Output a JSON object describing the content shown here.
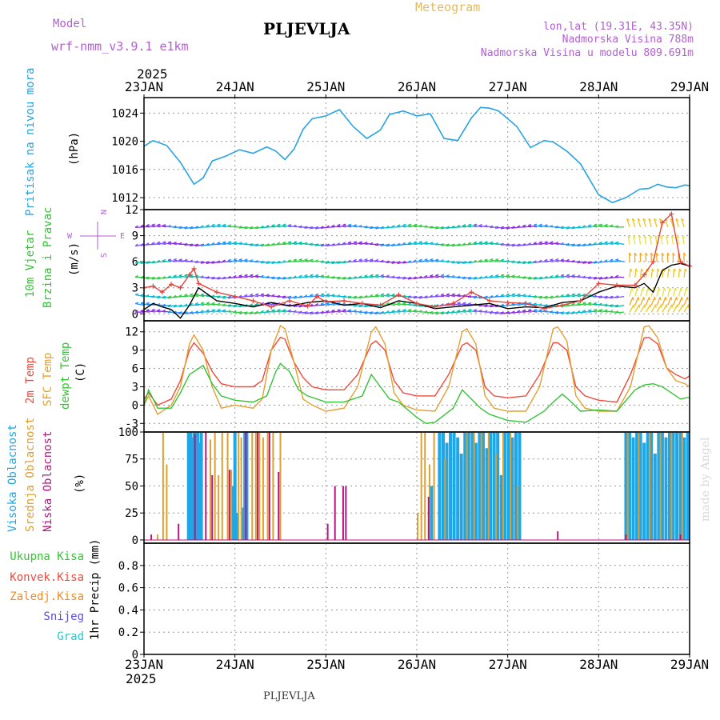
{
  "header": {
    "model_label": "Model",
    "model_name": "wrf-nmm_v3.9.1  e1km",
    "station": "PLJEVLJA",
    "title": "Meteogram",
    "coords": "lon,lat (19.31E, 43.35N)",
    "elevation": "Nadmorska Visina 788m",
    "model_elevation": "Nadmorska Visina u modelu 809.691m"
  },
  "footer": {
    "station": "PLJEVLJA",
    "credit": "made by Angel"
  },
  "time_axis": {
    "year": "2025",
    "labels": [
      "23JAN",
      "24JAN",
      "25JAN",
      "26JAN",
      "27JAN",
      "28JAN",
      "29JAN"
    ]
  },
  "colors": {
    "pressure": "#29a3e0",
    "temp2m": "#ef4a3c",
    "sfctemp": "#e3a033",
    "dewpt": "#35c335",
    "high": "#1fa6e6",
    "mid": "#dca032",
    "low": "#b5177d",
    "gust": "#e4433a",
    "wind": "#000000"
  },
  "chart_data": [
    {
      "type": "line",
      "panel": "pressure",
      "ylabel": [
        "Pritisak na nivou mora",
        "(hPa)"
      ],
      "ylim": [
        1010.3,
        1026.2
      ],
      "yticks": [
        "1012",
        "1016",
        "1020",
        "1024"
      ],
      "grid": true,
      "series": [
        {
          "key": "pressure",
          "x": [
            0,
            0.1,
            0.25,
            0.4,
            0.55,
            0.65,
            0.75,
            0.9,
            1.05,
            1.2,
            1.35,
            1.45,
            1.55,
            1.65,
            1.75,
            1.85,
            2.0,
            2.15,
            2.3,
            2.45,
            2.6,
            2.7,
            2.85,
            3.0,
            3.15,
            3.3,
            3.45,
            3.6,
            3.7,
            3.8,
            3.9,
            4.1,
            4.25,
            4.4,
            4.5,
            4.65,
            4.8,
            5.0,
            5.15,
            5.3,
            5.45,
            5.55,
            5.65,
            5.75,
            5.85,
            5.95,
            6.0
          ],
          "values": [
            1019.3,
            1020.1,
            1019.4,
            1017.0,
            1013.9,
            1014.8,
            1017.2,
            1017.9,
            1018.8,
            1018.3,
            1019.2,
            1018.6,
            1017.4,
            1018.9,
            1021.7,
            1023.2,
            1023.6,
            1024.5,
            1022.1,
            1020.4,
            1021.6,
            1023.8,
            1024.3,
            1023.6,
            1023.9,
            1020.4,
            1020.1,
            1023.3,
            1024.8,
            1024.7,
            1024.3,
            1022.1,
            1019.1,
            1020.1,
            1019.9,
            1018.6,
            1016.8,
            1012.4,
            1011.3,
            1012.0,
            1013.2,
            1013.3,
            1013.9,
            1013.5,
            1013.4,
            1013.8,
            1013.7
          ]
        }
      ]
    },
    {
      "type": "line",
      "panel": "wind",
      "ylabel": [
        "10m Vjetar",
        "Brzina i Pravac",
        "(m/s)"
      ],
      "direction_key": {
        "w": "W",
        "e": "E",
        "n": "N",
        "s": "S"
      },
      "ylim": [
        -0.8,
        12
      ],
      "yticks": [
        "0",
        "3",
        "6",
        "9",
        "12"
      ],
      "grid": true,
      "arrow_rows": [
        0.2,
        1.0,
        2.0,
        4.2,
        6.0,
        8.0,
        10.0
      ],
      "series": [
        {
          "key": "wind",
          "x": [
            0,
            0.1,
            0.2,
            0.3,
            0.4,
            0.5,
            0.6,
            0.8,
            1.0,
            1.2,
            1.4,
            1.6,
            1.8,
            2.0,
            2.2,
            2.4,
            2.6,
            2.8,
            3.0,
            3.2,
            3.4,
            3.6,
            3.8,
            4.0,
            4.2,
            4.4,
            4.6,
            4.8,
            5.0,
            5.2,
            5.4,
            5.5,
            5.6,
            5.7,
            5.8,
            5.9,
            6.0
          ],
          "values": [
            0.5,
            1.2,
            0.8,
            0.5,
            -0.5,
            1.0,
            3.0,
            1.5,
            1.2,
            0.8,
            1.3,
            0.9,
            1.3,
            1.5,
            1.0,
            1.2,
            0.7,
            1.5,
            1.2,
            0.6,
            0.8,
            1.0,
            1.2,
            0.6,
            0.8,
            0.7,
            1.3,
            1.5,
            2.5,
            3.2,
            3.0,
            3.5,
            2.5,
            5.0,
            5.6,
            5.8,
            5.5
          ]
        },
        {
          "key": "gust",
          "x": [
            0,
            0.1,
            0.2,
            0.3,
            0.4,
            0.5,
            0.55,
            0.6,
            0.8,
            1.0,
            1.2,
            1.4,
            1.6,
            1.8,
            1.9,
            2.0,
            2.2,
            2.4,
            2.6,
            2.8,
            3.0,
            3.2,
            3.4,
            3.6,
            3.8,
            4.0,
            4.2,
            4.4,
            4.6,
            4.8,
            5.0,
            5.2,
            5.4,
            5.5,
            5.6,
            5.7,
            5.8,
            5.9,
            6.0
          ],
          "values": [
            3.0,
            3.2,
            2.5,
            3.4,
            3.0,
            4.5,
            5.2,
            3.5,
            2.5,
            2.0,
            1.5,
            0.8,
            1.5,
            0.9,
            2.0,
            1.4,
            1.5,
            1.2,
            1.0,
            2.2,
            1.2,
            0.8,
            1.2,
            2.5,
            1.5,
            1.3,
            1.2,
            0.6,
            1.0,
            1.5,
            3.5,
            3.3,
            3.3,
            4.5,
            6.0,
            10.5,
            11.5,
            6.0,
            5.5
          ]
        }
      ]
    },
    {
      "type": "line",
      "panel": "temperature",
      "ylabel": [
        "2m Temp",
        "SFC Temp",
        "dewpt Temp",
        "(C)"
      ],
      "ylim": [
        -4.4,
        13.8
      ],
      "yticks": [
        "-3",
        "0",
        "3",
        "6",
        "9",
        "12"
      ],
      "grid": true,
      "series": [
        {
          "key": "temp2m",
          "x": [
            0,
            0.05,
            0.15,
            0.3,
            0.4,
            0.5,
            0.55,
            0.65,
            0.75,
            0.85,
            1.0,
            1.2,
            1.3,
            1.4,
            1.5,
            1.55,
            1.65,
            1.75,
            1.85,
            2.0,
            2.2,
            2.35,
            2.5,
            2.55,
            2.65,
            2.75,
            2.85,
            3.0,
            3.2,
            3.35,
            3.5,
            3.55,
            3.65,
            3.75,
            3.85,
            4.0,
            4.2,
            4.35,
            4.5,
            4.55,
            4.65,
            4.75,
            4.85,
            5.0,
            5.2,
            5.35,
            5.5,
            5.55,
            5.65,
            5.75,
            5.85,
            5.95,
            6.0
          ],
          "values": [
            1.0,
            2.0,
            0.0,
            1.0,
            4.0,
            9.0,
            10.2,
            8.5,
            5.5,
            3.5,
            3.0,
            3.0,
            4.0,
            9.0,
            11.1,
            10.8,
            7.0,
            4.5,
            3.0,
            2.5,
            2.5,
            5.0,
            10.0,
            10.5,
            9.0,
            4.0,
            2.0,
            1.5,
            1.5,
            5.0,
            9.8,
            10.2,
            9.0,
            3.0,
            1.5,
            1.2,
            1.5,
            5.0,
            10.2,
            10.2,
            9.0,
            3.0,
            1.5,
            0.8,
            0.5,
            5.0,
            11.0,
            11.1,
            10.0,
            6.0,
            5.0,
            4.3,
            4.8
          ]
        },
        {
          "key": "sfctemp",
          "x": [
            0,
            0.05,
            0.15,
            0.3,
            0.4,
            0.5,
            0.55,
            0.65,
            0.75,
            0.85,
            1.0,
            1.2,
            1.3,
            1.4,
            1.5,
            1.55,
            1.65,
            1.75,
            1.85,
            2.0,
            2.2,
            2.35,
            2.5,
            2.55,
            2.65,
            2.75,
            2.85,
            3.0,
            3.2,
            3.35,
            3.5,
            3.55,
            3.65,
            3.75,
            3.85,
            4.0,
            4.2,
            4.35,
            4.5,
            4.55,
            4.65,
            4.75,
            4.85,
            5.0,
            5.2,
            5.35,
            5.5,
            5.55,
            5.65,
            5.75,
            5.85,
            5.95,
            6.0
          ],
          "values": [
            0.0,
            1.5,
            -1.5,
            0.0,
            3.0,
            10.0,
            11.5,
            9.0,
            3.0,
            -0.5,
            0.0,
            -0.5,
            1.0,
            9.0,
            13.0,
            12.5,
            7.0,
            1.0,
            0.0,
            -1.0,
            -0.5,
            3.0,
            12.0,
            12.8,
            10.0,
            2.0,
            0.0,
            -0.8,
            -1.0,
            3.0,
            12.0,
            12.5,
            10.0,
            1.5,
            -0.5,
            -1.0,
            -1.0,
            3.0,
            12.5,
            12.8,
            10.5,
            1.5,
            -0.5,
            -1.0,
            -1.0,
            3.0,
            12.8,
            13.0,
            11.0,
            6.0,
            4.0,
            3.5,
            3.0
          ]
        },
        {
          "key": "dewpt",
          "x": [
            0,
            0.05,
            0.15,
            0.3,
            0.4,
            0.5,
            0.55,
            0.65,
            0.75,
            0.85,
            1.0,
            1.2,
            1.35,
            1.45,
            1.5,
            1.6,
            1.7,
            1.8,
            2.0,
            2.2,
            2.4,
            2.5,
            2.6,
            2.7,
            2.8,
            3.0,
            3.1,
            3.2,
            3.4,
            3.5,
            3.6,
            3.7,
            3.8,
            4.0,
            4.2,
            4.4,
            4.5,
            4.6,
            4.7,
            4.8,
            5.0,
            5.2,
            5.4,
            5.5,
            5.6,
            5.7,
            5.8,
            5.9,
            6.0
          ],
          "values": [
            0.0,
            2.5,
            -0.5,
            -0.5,
            2.0,
            5.0,
            5.5,
            6.5,
            3.5,
            1.5,
            0.8,
            0.5,
            1.5,
            5.5,
            6.8,
            5.5,
            2.5,
            1.5,
            0.5,
            0.5,
            1.5,
            5.0,
            3.0,
            1.0,
            0.5,
            -2.0,
            -3.0,
            -2.8,
            -0.5,
            2.5,
            1.0,
            -0.5,
            -1.5,
            -2.5,
            -2.8,
            -1.0,
            0.5,
            1.8,
            0.5,
            -1.0,
            -0.8,
            -1.0,
            2.5,
            3.3,
            3.5,
            3.0,
            2.0,
            1.0,
            1.3
          ]
        }
      ]
    },
    {
      "type": "bar",
      "panel": "clouds",
      "ylabel": [
        "Visoka Oblacnost",
        "Srednja Oblacnost",
        "Niska Oblacnost",
        "(%)"
      ],
      "ylim": [
        -3,
        100
      ],
      "yticks": [
        "0",
        "25",
        "50",
        "75",
        "100"
      ],
      "grid": true,
      "series": [
        {
          "key": "high",
          "name": "Visoka Oblacnost",
          "x": [
            0.49,
            0.51,
            0.53,
            0.55,
            0.57,
            0.59,
            0.61,
            0.63,
            0.98,
            1.0,
            1.02,
            1.09,
            1.11,
            1.13,
            3.16,
            3.25,
            3.29,
            3.33,
            3.37,
            3.41,
            3.45,
            3.49,
            3.53,
            3.57,
            3.61,
            3.65,
            3.69,
            3.73,
            3.77,
            3.81,
            3.85,
            3.89,
            3.93,
            3.97,
            4.01,
            4.05,
            4.09,
            4.13,
            5.3,
            5.34,
            5.38,
            5.42,
            5.46,
            5.5,
            5.54,
            5.58,
            5.62,
            5.66,
            5.7,
            5.74,
            5.78,
            5.82,
            5.86,
            5.9,
            5.94,
            5.98
          ],
          "values": [
            100,
            100,
            95,
            100,
            100,
            100,
            90,
            100,
            50,
            100,
            25,
            30,
            100,
            100,
            50,
            100,
            100,
            90,
            100,
            100,
            95,
            80,
            100,
            100,
            100,
            90,
            100,
            100,
            85,
            100,
            100,
            100,
            60,
            100,
            100,
            95,
            100,
            100,
            100,
            100,
            95,
            100,
            100,
            90,
            100,
            100,
            80,
            100,
            100,
            95,
            100,
            100,
            100,
            100,
            95,
            100
          ]
        },
        {
          "key": "mid",
          "name": "Srednja Oblacnost",
          "x": [
            0.15,
            0.21,
            0.25,
            0.73,
            0.78,
            0.82,
            0.86,
            0.92,
            0.96,
            1.04,
            1.07,
            1.19,
            1.23,
            1.27,
            1.31,
            1.36,
            1.42,
            1.5,
            3.01,
            3.05,
            3.09,
            3.14,
            3.19,
            3.31,
            3.55,
            3.63,
            3.71,
            3.79,
            3.87,
            3.95,
            4.03,
            4.11,
            5.32,
            5.44,
            5.56,
            5.68,
            5.8,
            5.92
          ],
          "values": [
            5,
            100,
            70,
            93,
            100,
            60,
            100,
            100,
            65,
            100,
            95,
            100,
            100,
            100,
            95,
            100,
            100,
            100,
            25,
            100,
            100,
            70,
            100,
            75,
            100,
            100,
            100,
            100,
            80,
            100,
            100,
            50,
            100,
            100,
            100,
            100,
            100,
            100
          ]
        },
        {
          "key": "low",
          "name": "Niska Oblacnost",
          "x": [
            0.08,
            0.38,
            0.56,
            0.68,
            0.75,
            0.94,
            1.12,
            1.25,
            1.38,
            1.48,
            2.1,
            2.19,
            2.22,
            2.02,
            3.13,
            4.55,
            5.3,
            5.9
          ],
          "values": [
            5,
            15,
            98,
            100,
            60,
            65,
            100,
            100,
            100,
            63,
            50,
            50,
            50,
            15,
            40,
            8,
            5,
            5
          ]
        }
      ]
    },
    {
      "type": "line",
      "panel": "precip",
      "ylabel": [
        "1hr Precip (mm)"
      ],
      "ylim": [
        0,
        1.0
      ],
      "yticks": [
        "0",
        "0.2",
        "0.4",
        "0.6",
        "0.8"
      ],
      "grid": true,
      "legend": [
        "Ukupna Kisa",
        "Konvek.Kisa",
        "Zaledj.Kisa",
        "Snijeg",
        "Grad"
      ],
      "series": []
    }
  ]
}
